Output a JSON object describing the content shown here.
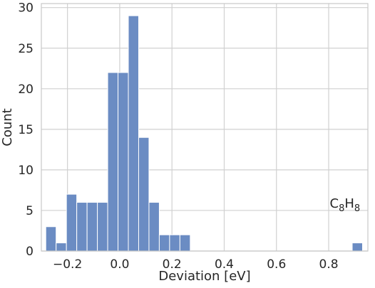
{
  "chart_data": {
    "type": "bar",
    "title": "",
    "xlabel": "Deviation [eV]",
    "ylabel": "Count",
    "xlim": [
      -0.3,
      0.95
    ],
    "ylim": [
      0,
      30.5
    ],
    "xticks": [
      -0.2,
      0.0,
      0.2,
      0.4,
      0.6,
      0.8
    ],
    "xtick_labels": [
      "−0.2",
      "0.0",
      "0.2",
      "0.4",
      "0.6",
      "0.8"
    ],
    "yticks": [
      0,
      5,
      10,
      15,
      20,
      25,
      30
    ],
    "ytick_labels": [
      "0",
      "5",
      "10",
      "15",
      "20",
      "25",
      "30"
    ],
    "grid": true,
    "bin_width": 0.0395,
    "bins": [
      {
        "start": -0.283,
        "count": 3
      },
      {
        "start": -0.2435,
        "count": 1
      },
      {
        "start": -0.204,
        "count": 7
      },
      {
        "start": -0.1645,
        "count": 6
      },
      {
        "start": -0.125,
        "count": 6
      },
      {
        "start": -0.0855,
        "count": 6
      },
      {
        "start": -0.046,
        "count": 22
      },
      {
        "start": -0.0065,
        "count": 22
      },
      {
        "start": 0.033,
        "count": 29
      },
      {
        "start": 0.0725,
        "count": 14
      },
      {
        "start": 0.112,
        "count": 6
      },
      {
        "start": 0.1515,
        "count": 2
      },
      {
        "start": 0.191,
        "count": 2
      },
      {
        "start": 0.2305,
        "count": 2
      },
      {
        "start": 0.89,
        "count": 1
      }
    ],
    "color": "#6b8cc3",
    "annotation": {
      "base": "C",
      "sub1": "8",
      "base2": "H",
      "sub2": "8",
      "x": 0.895,
      "y": 3.0
    }
  }
}
